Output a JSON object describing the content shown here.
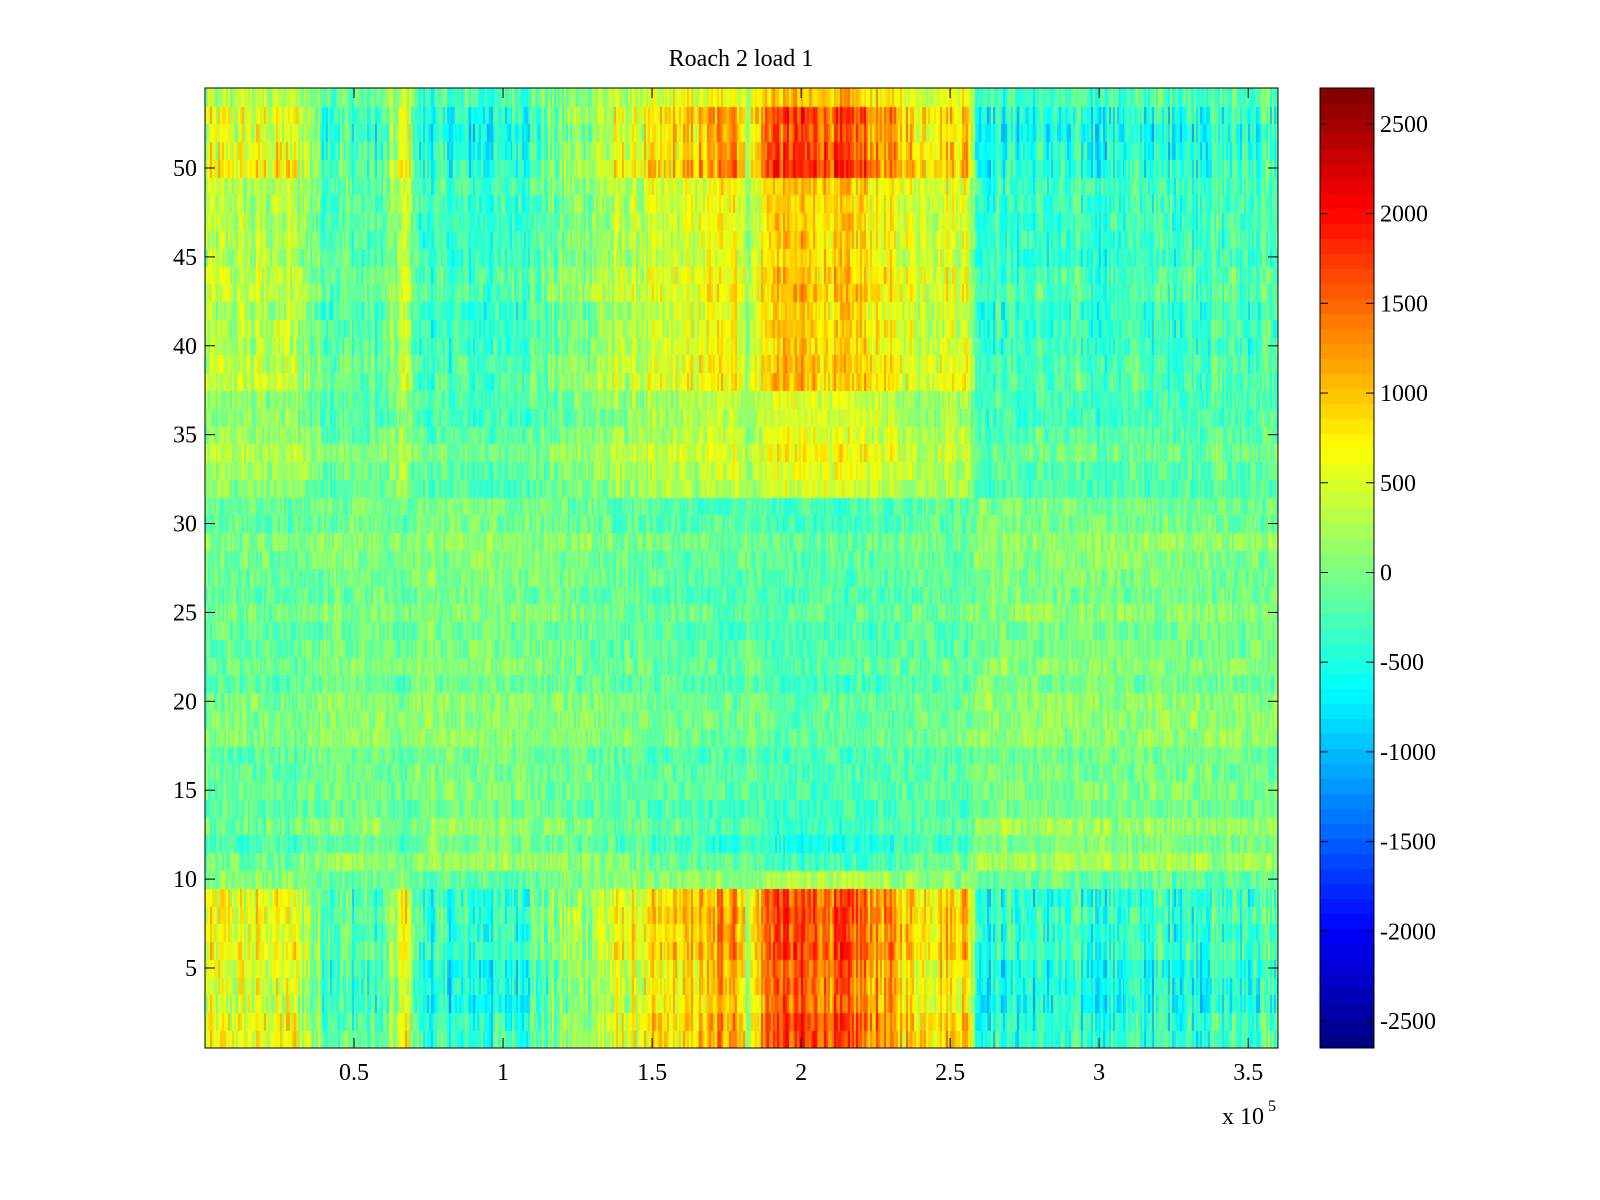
{
  "chart_data": {
    "type": "heatmap",
    "title": "Roach 2 load 1",
    "xlabel": "",
    "ylabel": "",
    "x_multiplier_label": "x 10",
    "x_multiplier_exponent": "5",
    "xlim": [
      0,
      360000
    ],
    "ylim": [
      0.5,
      54.5
    ],
    "x_ticks": [
      50000,
      100000,
      150000,
      200000,
      250000,
      300000,
      350000
    ],
    "x_tick_labels": [
      "0.5",
      "1",
      "1.5",
      "2",
      "2.5",
      "3",
      "3.5"
    ],
    "y_ticks": [
      5,
      10,
      15,
      20,
      25,
      30,
      35,
      40,
      45,
      50
    ],
    "y_tick_labels": [
      "5",
      "10",
      "15",
      "20",
      "25",
      "30",
      "35",
      "40",
      "45",
      "50"
    ],
    "rows": 54,
    "colorbar": {
      "colormap": "jet",
      "clim": [
        -2650,
        2700
      ],
      "ticks": [
        2500,
        2000,
        1500,
        1000,
        500,
        0,
        -500,
        -1000,
        -1500,
        -2000,
        -2500
      ],
      "tick_labels": [
        "2500",
        "2000",
        "1500",
        "1000",
        "500",
        "0",
        "-500",
        "-1000",
        "-1500",
        "-2000",
        "-2500"
      ]
    },
    "column_profile": {
      "description_units": "x in data units; base value added to every row",
      "x": [
        0,
        30000,
        40000,
        60000,
        68000,
        72000,
        100000,
        140000,
        170000,
        178000,
        182000,
        190000,
        220000,
        240000,
        256000,
        260000,
        300000,
        360000
      ],
      "base": [
        300,
        350,
        -100,
        -200,
        450,
        -300,
        -300,
        300,
        600,
        900,
        200,
        1000,
        900,
        500,
        600,
        -300,
        -300,
        -200
      ]
    },
    "row_band_amplitude": {
      "description_units": "row ranges (inclusive) and multiplier applied to column signal",
      "bands": [
        {
          "rows": [
            1,
            9
          ],
          "gain": 1.6,
          "offset": 0
        },
        {
          "rows": [
            10,
            10
          ],
          "gain": 0.3,
          "offset": -100
        },
        {
          "rows": [
            11,
            13
          ],
          "gain": -0.4,
          "offset": 0
        },
        {
          "rows": [
            14,
            31
          ],
          "gain": -0.2,
          "offset": 0
        },
        {
          "rows": [
            32,
            37
          ],
          "gain": 0.6,
          "offset": 0
        },
        {
          "rows": [
            38,
            49
          ],
          "gain": 1.0,
          "offset": 0
        },
        {
          "rows": [
            50,
            53
          ],
          "gain": 1.7,
          "offset": 0
        }
      ]
    }
  }
}
